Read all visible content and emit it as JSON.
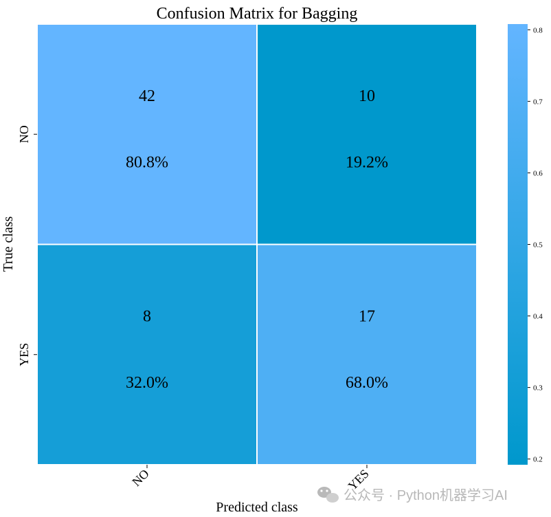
{
  "chart_data": {
    "type": "heatmap",
    "title": "Confusion Matrix for Bagging",
    "xlabel": "Predicted class",
    "ylabel": "True class",
    "x_categories": [
      "NO",
      "YES"
    ],
    "y_categories": [
      "NO",
      "YES"
    ],
    "counts": [
      [
        42,
        10
      ],
      [
        8,
        17
      ]
    ],
    "percent_labels": [
      [
        "80.8%",
        "19.2%"
      ],
      [
        "32.0%",
        "68.0%"
      ]
    ],
    "values": [
      [
        0.808,
        0.192
      ],
      [
        0.32,
        0.68
      ]
    ],
    "colorbar": {
      "range": [
        0.192,
        0.808
      ],
      "ticks": [
        0.2,
        0.3,
        0.4,
        0.5,
        0.6,
        0.7,
        0.8
      ],
      "color_low": "#0098CC",
      "color_high": "#63B5FF"
    },
    "grid": false
  },
  "watermark": {
    "text": "公众号 · Python机器学习AI",
    "icon": "wechat-icon"
  }
}
